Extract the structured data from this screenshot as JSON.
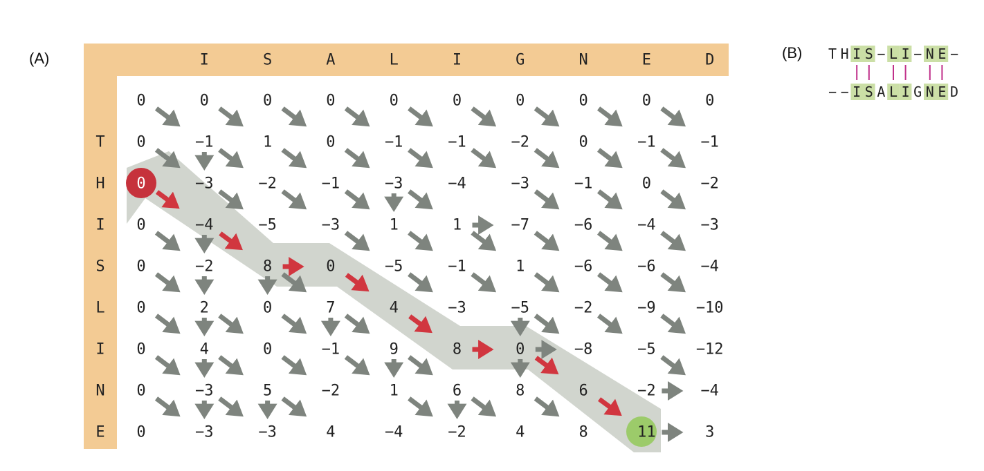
{
  "panel_a_label": "(A)",
  "panel_b_label": "(B)",
  "columns": [
    "I",
    "S",
    "A",
    "L",
    "I",
    "G",
    "N",
    "E",
    "D"
  ],
  "rows": [
    "T",
    "H",
    "I",
    "S",
    "L",
    "I",
    "N",
    "E"
  ],
  "matrix": [
    [
      "0",
      "0",
      "0",
      "0",
      "0",
      "0",
      "0",
      "0",
      "0",
      "0"
    ],
    [
      "0",
      "−1",
      "1",
      "0",
      "−1",
      "−1",
      "−2",
      "0",
      "−1",
      "−1"
    ],
    [
      "0",
      "−3",
      "−2",
      "−1",
      "−3",
      "−4",
      "−3",
      "−1",
      "0",
      "−2"
    ],
    [
      "0",
      "−4",
      "−5",
      "−3",
      "1",
      "1",
      "−7",
      "−6",
      "−4",
      "−3"
    ],
    [
      "0",
      "−2",
      "8",
      "0",
      "−5",
      "−1",
      "1",
      "−6",
      "−6",
      "−4"
    ],
    [
      "0",
      "2",
      "0",
      "7",
      "4",
      "−3",
      "−5",
      "−2",
      "−9",
      "−10"
    ],
    [
      "0",
      "4",
      "0",
      "−1",
      "9",
      "8",
      "0",
      "−8",
      "−5",
      "−12"
    ],
    [
      "0",
      "−3",
      "5",
      "−2",
      "1",
      "6",
      "8",
      "6",
      "−2",
      "−4"
    ],
    [
      "0",
      "−3",
      "−3",
      "4",
      "−4",
      "−2",
      "4",
      "8",
      "11",
      "3"
    ]
  ],
  "start_cell": {
    "row": 2,
    "col": 0
  },
  "end_cell": {
    "row": 8,
    "col": 8
  },
  "red_arrows": [
    {
      "type": "diag",
      "row": 2,
      "col": 0
    },
    {
      "type": "diag",
      "row": 3,
      "col": 1
    },
    {
      "type": "right",
      "row": 4,
      "col": 2
    },
    {
      "type": "diag",
      "row": 4,
      "col": 3
    },
    {
      "type": "diag",
      "row": 5,
      "col": 4
    },
    {
      "type": "right",
      "row": 6,
      "col": 5
    },
    {
      "type": "diag",
      "row": 6,
      "col": 6
    },
    {
      "type": "diag",
      "row": 7,
      "col": 7
    }
  ],
  "gray_diag": [
    [
      0,
      0
    ],
    [
      0,
      1
    ],
    [
      0,
      2
    ],
    [
      0,
      3
    ],
    [
      0,
      4
    ],
    [
      0,
      5
    ],
    [
      0,
      6
    ],
    [
      0,
      7
    ],
    [
      0,
      8
    ],
    [
      1,
      0
    ],
    [
      1,
      1
    ],
    [
      1,
      2
    ],
    [
      1,
      3
    ],
    [
      1,
      4
    ],
    [
      1,
      5
    ],
    [
      1,
      6
    ],
    [
      1,
      7
    ],
    [
      1,
      8
    ],
    [
      2,
      1
    ],
    [
      2,
      2
    ],
    [
      2,
      3
    ],
    [
      2,
      4
    ],
    [
      2,
      6
    ],
    [
      2,
      7
    ],
    [
      2,
      8
    ],
    [
      3,
      0
    ],
    [
      3,
      3
    ],
    [
      3,
      4
    ],
    [
      3,
      5
    ],
    [
      3,
      6
    ],
    [
      3,
      7
    ],
    [
      3,
      8
    ],
    [
      4,
      0
    ],
    [
      4,
      2
    ],
    [
      4,
      4
    ],
    [
      4,
      5
    ],
    [
      4,
      6
    ],
    [
      4,
      7
    ],
    [
      4,
      8
    ],
    [
      5,
      0
    ],
    [
      5,
      1
    ],
    [
      5,
      2
    ],
    [
      5,
      3
    ],
    [
      5,
      6
    ],
    [
      5,
      7
    ],
    [
      5,
      8
    ],
    [
      6,
      0
    ],
    [
      6,
      1
    ],
    [
      6,
      2
    ],
    [
      6,
      3
    ],
    [
      6,
      4
    ],
    [
      6,
      8
    ],
    [
      7,
      0
    ],
    [
      7,
      1
    ],
    [
      7,
      2
    ],
    [
      7,
      4
    ],
    [
      7,
      5
    ],
    [
      7,
      6
    ]
  ],
  "gray_down": [
    [
      1,
      1
    ],
    [
      3,
      1
    ],
    [
      4,
      1
    ],
    [
      5,
      1
    ],
    [
      6,
      1
    ],
    [
      7,
      1
    ],
    [
      4,
      2
    ],
    [
      7,
      2
    ],
    [
      5,
      3
    ],
    [
      2,
      4
    ],
    [
      6,
      4
    ],
    [
      7,
      5
    ],
    [
      5,
      6
    ],
    [
      6,
      6
    ]
  ],
  "gray_right": [
    [
      3,
      5
    ],
    [
      6,
      6
    ],
    [
      7,
      8
    ],
    [
      8,
      8
    ]
  ],
  "alignment": {
    "top": [
      "T",
      "H",
      "I",
      "S",
      "−",
      "L",
      "I",
      "−",
      "N",
      "E",
      "−"
    ],
    "bottom": [
      "−",
      "−",
      "I",
      "S",
      "A",
      "L",
      "I",
      "G",
      "N",
      "E",
      "D"
    ],
    "highlight": [
      2,
      3,
      5,
      6,
      8,
      9
    ],
    "bars": [
      2,
      3,
      5,
      6,
      8,
      9
    ]
  },
  "colors": {
    "header_band": "#F3CB94",
    "path_band": "#D1D5CE",
    "red_arrow": "#D1363F",
    "gray_arrow": "#7E847E",
    "start_circle": "#C6323C",
    "end_circle": "#9CCB6A",
    "highlight": "#CBDFA6",
    "bar": "#C0308A"
  }
}
